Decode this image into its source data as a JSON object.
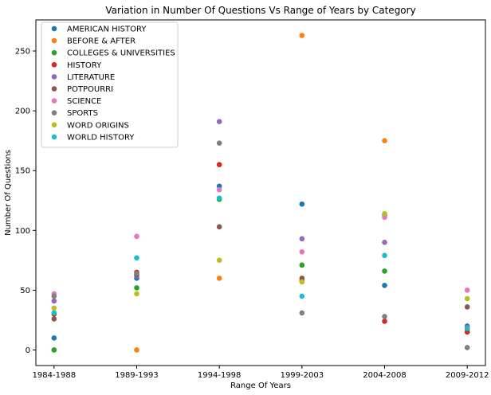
{
  "chart_data": {
    "type": "scatter",
    "title": "Variation in Number Of Questions Vs Range of Years by Category",
    "xlabel": "Range Of Years",
    "ylabel": "Number Of Questions",
    "categories": [
      "1984-1988",
      "1989-1993",
      "1994-1998",
      "1999-2003",
      "2004-2008",
      "2009-2012"
    ],
    "ylim": [
      -13,
      276
    ],
    "yticks": [
      0,
      50,
      100,
      150,
      200,
      250
    ],
    "grid": false,
    "legend_placement": "top-left",
    "series": [
      {
        "name": "AMERICAN HISTORY",
        "color": "#1f77b4",
        "values": [
          10,
          60,
          137,
          122,
          54,
          20
        ]
      },
      {
        "name": "BEFORE & AFTER",
        "color": "#ff7f0e",
        "values": [
          0,
          0,
          60,
          263,
          175,
          17
        ]
      },
      {
        "name": "COLLEGES & UNIVERSITIES",
        "color": "#2ca02c",
        "values": [
          0,
          52,
          126,
          71,
          66,
          18
        ]
      },
      {
        "name": "HISTORY",
        "color": "#d62728",
        "values": [
          30,
          65,
          155,
          58,
          24,
          15
        ]
      },
      {
        "name": "LITERATURE",
        "color": "#9467bd",
        "values": [
          41,
          62,
          191,
          93,
          90,
          19
        ]
      },
      {
        "name": "POTPOURRI",
        "color": "#8c564b",
        "values": [
          26,
          63,
          103,
          60,
          113,
          36
        ]
      },
      {
        "name": "SCIENCE",
        "color": "#e377c2",
        "values": [
          47,
          95,
          134,
          82,
          111,
          50
        ]
      },
      {
        "name": "SPORTS",
        "color": "#7f7f7f",
        "values": [
          45,
          64,
          173,
          31,
          28,
          2
        ]
      },
      {
        "name": "WORD ORIGINS",
        "color": "#bcbd22",
        "values": [
          35,
          47,
          75,
          57,
          114,
          43
        ]
      },
      {
        "name": "WORLD HISTORY",
        "color": "#17becf",
        "values": [
          31,
          77,
          127,
          45,
          79,
          18
        ]
      }
    ]
  }
}
